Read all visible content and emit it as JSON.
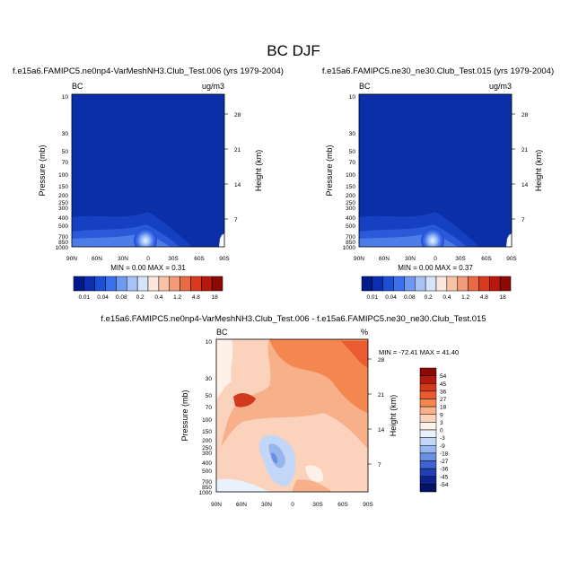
{
  "figure_title": "BC DJF",
  "chart_data": [
    {
      "type": "heatmap",
      "title": "f.e15a6.FAMIPC5.ne0np4-VarMeshNH3.Club_Test.006 (yrs 1979-2004)",
      "variable_label": "BC",
      "units_label": "ug/m3",
      "ylabel": "Pressure (mb)",
      "y2label": "Height (km)",
      "xlabel": "",
      "x_ticks": [
        "90N",
        "60N",
        "30N",
        "0",
        "30S",
        "60S",
        "90S"
      ],
      "y_ticks": [
        "10",
        "30",
        "50",
        "70",
        "100",
        "150",
        "200",
        "250",
        "300",
        "400",
        "500",
        "700",
        "850",
        "1000"
      ],
      "y2_ticks": [
        "28",
        "21",
        "14",
        "7"
      ],
      "ylim": [
        1000,
        10
      ],
      "xlim": [
        90,
        -90
      ],
      "stats_text": "MIN =  0.00  MAX =  0.31",
      "min": 0.0,
      "max": 0.31,
      "colorbar_labels": [
        "0.01",
        "0.04",
        "0.08",
        "0.2",
        "0.4",
        "1.2",
        "4.8",
        "18"
      ]
    },
    {
      "type": "heatmap",
      "title": "f.e15a6.FAMIPC5.ne30_ne30.Club_Test.015 (yrs 1979-2004)",
      "variable_label": "BC",
      "units_label": "ug/m3",
      "ylabel": "Pressure (mb)",
      "y2label": "Height (km)",
      "xlabel": "",
      "x_ticks": [
        "90N",
        "60N",
        "30N",
        "0",
        "30S",
        "60S",
        "90S"
      ],
      "y_ticks": [
        "10",
        "30",
        "50",
        "70",
        "100",
        "150",
        "200",
        "250",
        "300",
        "400",
        "500",
        "700",
        "850",
        "1000"
      ],
      "y2_ticks": [
        "28",
        "21",
        "14",
        "7"
      ],
      "ylim": [
        1000,
        10
      ],
      "xlim": [
        90,
        -90
      ],
      "stats_text": "MIN =  0.00  MAX =  0.37",
      "min": 0.0,
      "max": 0.37,
      "colorbar_labels": [
        "0.01",
        "0.04",
        "0.08",
        "0.2",
        "0.4",
        "1.2",
        "4.8",
        "18"
      ]
    },
    {
      "type": "heatmap",
      "title": "f.e15a6.FAMIPC5.ne0np4-VarMeshNH3.Club_Test.006 - f.e15a6.FAMIPC5.ne30_ne30.Club_Test.015",
      "variable_label": "BC",
      "units_label": "%",
      "ylabel": "Pressure (mb)",
      "y2label": "Height (km)",
      "xlabel": "",
      "x_ticks": [
        "90N",
        "60N",
        "30N",
        "0",
        "30S",
        "60S",
        "90S"
      ],
      "y_ticks": [
        "10",
        "30",
        "50",
        "70",
        "100",
        "150",
        "200",
        "250",
        "300",
        "400",
        "500",
        "700",
        "850",
        "1000"
      ],
      "y2_ticks": [
        "28",
        "21",
        "14",
        "7"
      ],
      "ylim": [
        1000,
        10
      ],
      "xlim": [
        90,
        -90
      ],
      "stats_text": "MIN = -72.41  MAX =  41.40",
      "min": -72.41,
      "max": 41.4,
      "colorbar_labels": [
        "54",
        "45",
        "36",
        "27",
        "18",
        "9",
        "3",
        "0",
        "-3",
        "-9",
        "-18",
        "-27",
        "-36",
        "-45",
        "-54"
      ]
    }
  ],
  "colors": {
    "abs_scale": [
      "#001a8c",
      "#0a2fb0",
      "#1b4fd6",
      "#3a70ee",
      "#6e99f3",
      "#a8c4f7",
      "#d6e4fb",
      "#fbe6dc",
      "#f7c2a8",
      "#f29a78",
      "#eb6a46",
      "#d93a1e",
      "#b8170d",
      "#8c0a06"
    ],
    "diff_scale": [
      "#8c0a06",
      "#b31a0e",
      "#d23a1e",
      "#ea5b32",
      "#f4864f",
      "#f8b08a",
      "#fbd3bd",
      "#fdf1e8",
      "#e9f1fc",
      "#c2d6f7",
      "#97b6ef",
      "#6a8fe3",
      "#3f64cf",
      "#2040b3",
      "#0d238a",
      "#051366"
    ]
  }
}
